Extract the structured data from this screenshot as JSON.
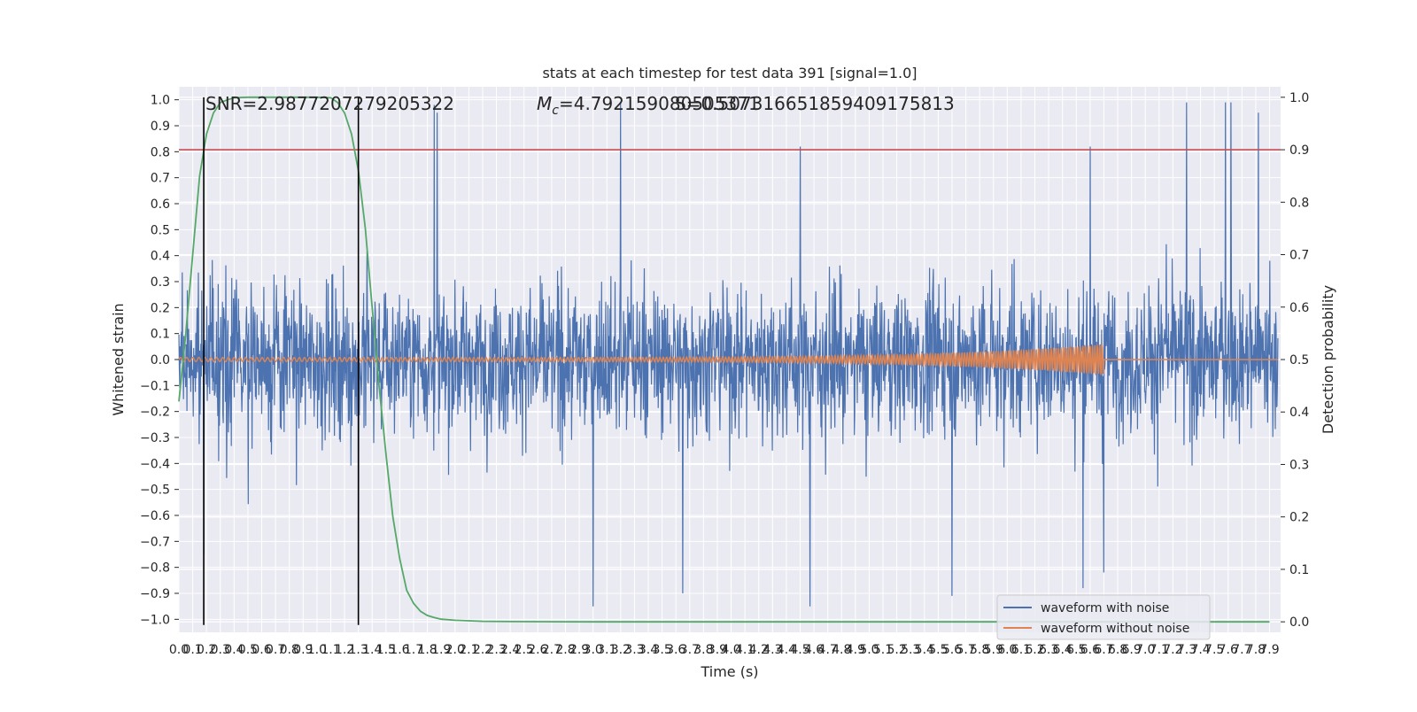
{
  "chart_data": {
    "type": "line",
    "title": "stats at each timestep for test data 391 [signal=1.0]",
    "xlabel": "Time (s)",
    "ylabel": "Whitened strain",
    "y2label": "Detection probability",
    "xlim": [
      0.0,
      7.98
    ],
    "ylim": [
      -1.05,
      1.05
    ],
    "y2lim": [
      -0.02,
      1.02
    ],
    "x_ticks": [
      "0.0",
      "0.1",
      "0.2",
      "0.3",
      "0.4",
      "0.5",
      "0.6",
      "0.7",
      "0.8",
      "0.9",
      "1.0",
      "1.1",
      "1.2",
      "1.3",
      "1.4",
      "1.5",
      "1.6",
      "1.7",
      "1.8",
      "1.9",
      "2.0",
      "2.1",
      "2.2",
      "2.3",
      "2.4",
      "2.5",
      "2.6",
      "2.7",
      "2.8",
      "2.9",
      "3.0",
      "3.1",
      "3.2",
      "3.3",
      "3.4",
      "3.5",
      "3.6",
      "3.7",
      "3.8",
      "3.9",
      "4.0",
      "4.1",
      "4.2",
      "4.3",
      "4.4",
      "4.5",
      "4.6",
      "4.7",
      "4.8",
      "4.9",
      "5.0",
      "5.1",
      "5.2",
      "5.3",
      "5.4",
      "5.5",
      "5.6",
      "5.7",
      "5.8",
      "5.9",
      "6.0",
      "6.1",
      "6.2",
      "6.3",
      "6.4",
      "6.5",
      "6.6",
      "6.7",
      "6.8",
      "6.9",
      "7.0",
      "7.1",
      "7.2",
      "7.3",
      "7.4",
      "7.5",
      "7.6",
      "7.7",
      "7.8",
      "7.9"
    ],
    "y_ticks": [
      "−1.0",
      "−0.9",
      "−0.8",
      "−0.7",
      "−0.6",
      "−0.5",
      "−0.4",
      "−0.3",
      "−0.2",
      "−0.1",
      "0.0",
      "0.1",
      "0.2",
      "0.3",
      "0.4",
      "0.5",
      "0.6",
      "0.7",
      "0.8",
      "0.9",
      "1.0"
    ],
    "y2_ticks": [
      "0.0",
      "0.1",
      "0.2",
      "0.3",
      "0.4",
      "0.5",
      "0.6",
      "0.7",
      "0.8",
      "0.9",
      "1.0"
    ],
    "annotations": {
      "snr": "SNR=2.9877207279205322",
      "mc_symbol": "M",
      "mc_sub": "c",
      "mc_value": "=4.792159080505371",
      "s_value": "S=0.5073166518594091758​13"
    },
    "threshold": {
      "value": 0.9,
      "axis": "right",
      "color": "#c44e52"
    },
    "vertical_markers": [
      0.18,
      1.3
    ],
    "colors": {
      "noise": "#4c72b0",
      "clean": "#dd8452",
      "probability": "#55a868",
      "threshold": "#c44e52",
      "markers": "#000000",
      "axes_bg": "#eaeaf2",
      "grid": "#ffffff"
    },
    "series": [
      {
        "name": "waveform with noise",
        "axis": "left",
        "description_values": {
          "typical_amplitude": 0.35,
          "positive_peaks": [
            [
              1.85,
              0.98
            ],
            [
              1.87,
              0.95
            ],
            [
              3.2,
              0.99
            ],
            [
              7.3,
              0.99
            ],
            [
              7.58,
              0.99
            ],
            [
              7.62,
              0.99
            ],
            [
              7.82,
              0.95
            ],
            [
              1.3,
              0.83
            ],
            [
              6.6,
              0.82
            ],
            [
              4.5,
              0.82
            ]
          ],
          "negative_peaks": [
            [
              0.18,
              -0.75
            ],
            [
              1.3,
              -0.92
            ],
            [
              3.0,
              -0.95
            ],
            [
              3.65,
              -0.9
            ],
            [
              4.57,
              -0.95
            ],
            [
              6.55,
              -0.88
            ],
            [
              6.7,
              -0.82
            ],
            [
              5.6,
              -0.91
            ]
          ]
        }
      },
      {
        "name": "waveform without noise",
        "axis": "left",
        "chirp": {
          "start": 0.0,
          "merger": 6.7,
          "start_amp": 0.008,
          "peak_amp": 0.06,
          "start_freq": 22,
          "end_freq": 40
        }
      },
      {
        "name": "probability",
        "axis": "right",
        "x": [
          0.0,
          0.05,
          0.1,
          0.15,
          0.2,
          0.25,
          0.3,
          0.35,
          0.4,
          0.5,
          0.6,
          0.7,
          0.8,
          0.9,
          1.0,
          1.1,
          1.15,
          1.2,
          1.25,
          1.3,
          1.35,
          1.4,
          1.45,
          1.5,
          1.55,
          1.6,
          1.65,
          1.7,
          1.75,
          1.8,
          1.85,
          1.9,
          2.0,
          2.1,
          2.2,
          2.4,
          3.0,
          4.0,
          5.0,
          6.0,
          7.0,
          7.9
        ],
        "y": [
          0.42,
          0.55,
          0.7,
          0.85,
          0.93,
          0.97,
          0.99,
          0.995,
          0.999,
          1.0,
          1.0,
          1.0,
          1.0,
          1.0,
          1.0,
          0.999,
          0.99,
          0.97,
          0.93,
          0.86,
          0.75,
          0.6,
          0.45,
          0.32,
          0.2,
          0.12,
          0.06,
          0.035,
          0.02,
          0.012,
          0.008,
          0.005,
          0.003,
          0.002,
          0.001,
          0.0005,
          0.0,
          0.0,
          0.0,
          0.0,
          0.0,
          0.0
        ]
      }
    ],
    "legend": {
      "placement": "lower-right",
      "entries": [
        {
          "label": "waveform with noise",
          "color": "#4c72b0"
        },
        {
          "label": "waveform without noise",
          "color": "#dd8452"
        }
      ]
    }
  }
}
